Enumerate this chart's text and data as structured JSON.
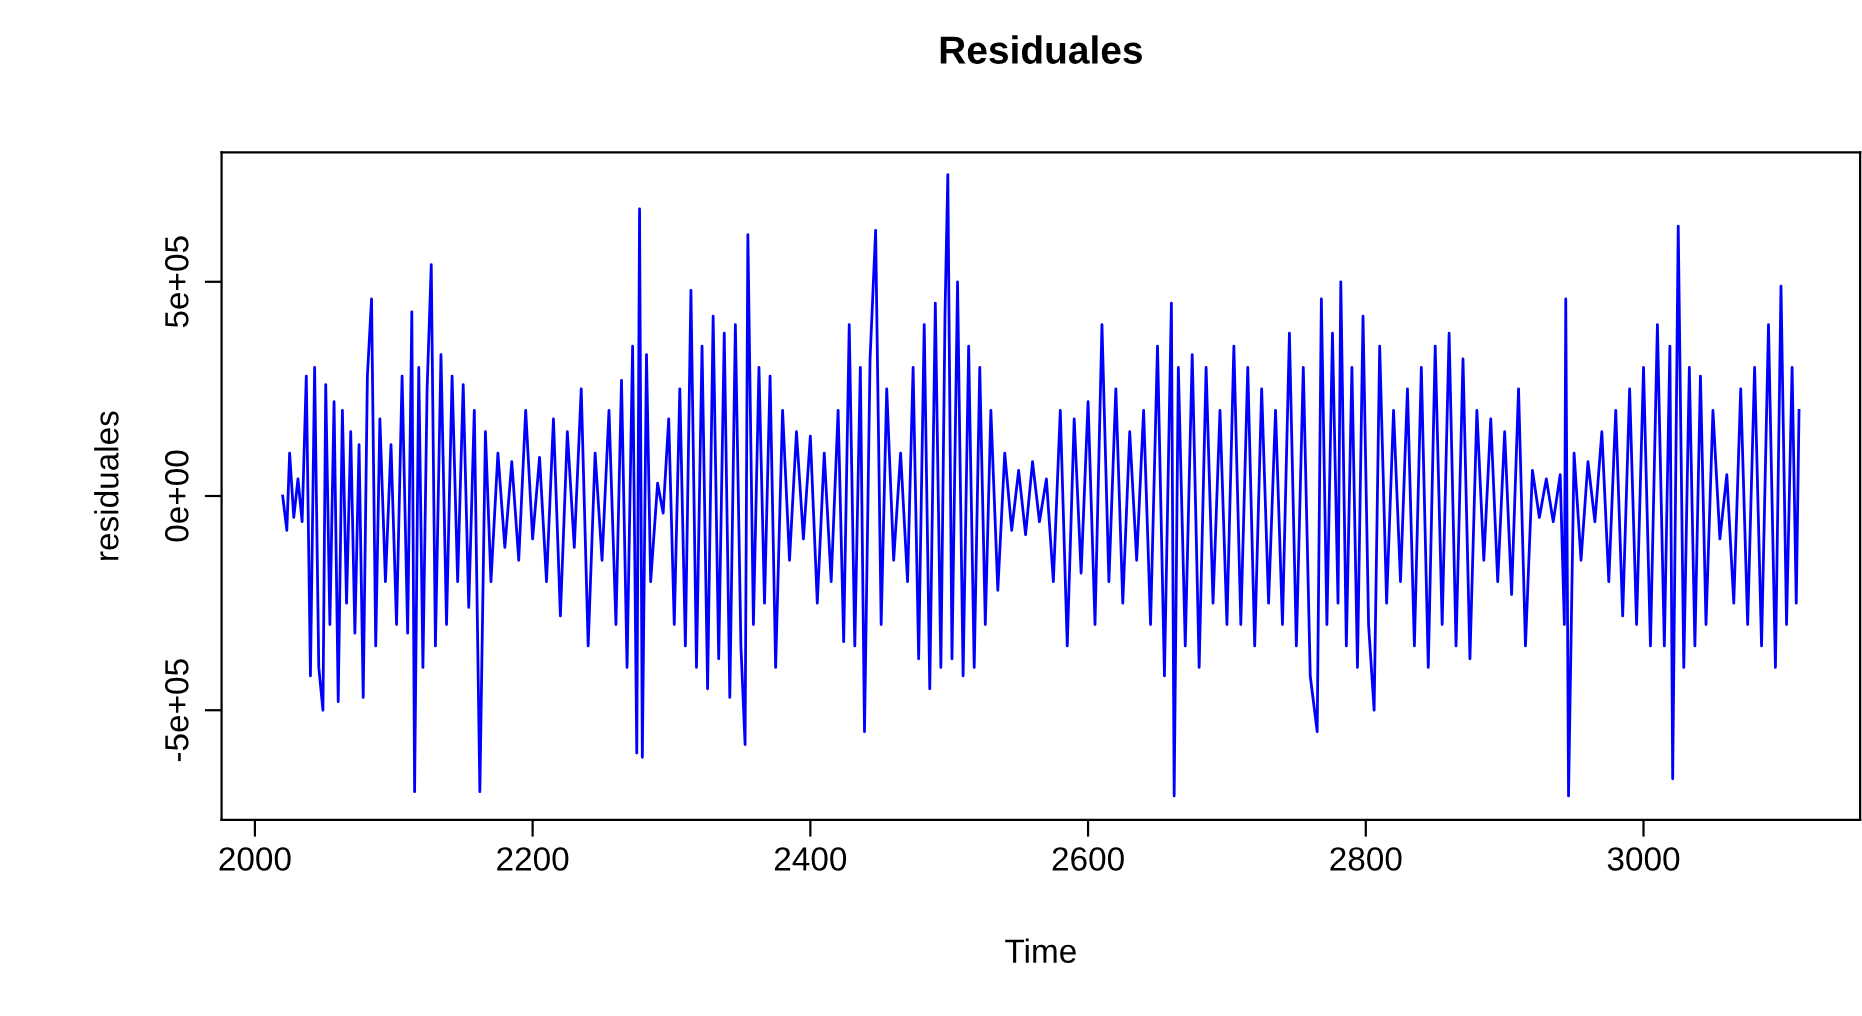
{
  "chart_data": {
    "type": "line",
    "title": "Residuales",
    "xlabel": "Time",
    "ylabel": "residuales",
    "xlim": [
      1976,
      3156
    ],
    "ylim": [
      -756000,
      802000
    ],
    "xticks": [
      2000,
      2200,
      2400,
      2600,
      2800,
      3000
    ],
    "yticks": [
      {
        "value": -500000,
        "label": "-5e+05"
      },
      {
        "value": 0,
        "label": "0e+00"
      },
      {
        "value": 500000,
        "label": "5e+05"
      }
    ],
    "grid": false,
    "legend": false,
    "marker": "none",
    "line_style": "solid",
    "series": [
      {
        "color": "#0000ff",
        "x": [
          2020,
          2023,
          2025,
          2028,
          2031,
          2034,
          2037,
          2040,
          2043,
          2046,
          2049,
          2051,
          2054,
          2057,
          2060,
          2063,
          2066,
          2069,
          2072,
          2075,
          2078,
          2081,
          2084,
          2087,
          2090,
          2094,
          2098,
          2102,
          2106,
          2110,
          2113,
          2115,
          2118,
          2121,
          2124,
          2127,
          2130,
          2134,
          2138,
          2142,
          2146,
          2150,
          2154,
          2158,
          2162,
          2166,
          2170,
          2175,
          2180,
          2185,
          2190,
          2195,
          2200,
          2205,
          2210,
          2215,
          2220,
          2225,
          2230,
          2235,
          2240,
          2245,
          2250,
          2255,
          2260,
          2264,
          2268,
          2272,
          2275,
          2277,
          2279,
          2282,
          2285,
          2290,
          2294,
          2298,
          2302,
          2306,
          2310,
          2314,
          2318,
          2322,
          2326,
          2330,
          2334,
          2338,
          2342,
          2346,
          2350,
          2353,
          2355,
          2359,
          2363,
          2367,
          2371,
          2375,
          2380,
          2385,
          2390,
          2395,
          2400,
          2405,
          2410,
          2415,
          2420,
          2424,
          2428,
          2432,
          2436,
          2439,
          2443,
          2447,
          2451,
          2455,
          2460,
          2465,
          2470,
          2474,
          2478,
          2482,
          2486,
          2490,
          2494,
          2497,
          2499,
          2502,
          2506,
          2510,
          2514,
          2518,
          2522,
          2526,
          2530,
          2535,
          2540,
          2545,
          2550,
          2555,
          2560,
          2565,
          2570,
          2575,
          2580,
          2585,
          2590,
          2595,
          2600,
          2605,
          2610,
          2615,
          2620,
          2625,
          2630,
          2635,
          2640,
          2645,
          2650,
          2655,
          2660,
          2662,
          2665,
          2670,
          2675,
          2680,
          2685,
          2690,
          2695,
          2700,
          2705,
          2710,
          2715,
          2720,
          2725,
          2730,
          2735,
          2740,
          2745,
          2750,
          2755,
          2760,
          2765,
          2768,
          2772,
          2776,
          2780,
          2782,
          2786,
          2790,
          2794,
          2798,
          2802,
          2806,
          2810,
          2815,
          2820,
          2825,
          2830,
          2835,
          2840,
          2845,
          2850,
          2855,
          2860,
          2865,
          2870,
          2875,
          2880,
          2885,
          2890,
          2895,
          2900,
          2905,
          2910,
          2915,
          2920,
          2925,
          2930,
          2935,
          2940,
          2943,
          2944,
          2946,
          2950,
          2955,
          2960,
          2965,
          2970,
          2975,
          2980,
          2985,
          2990,
          2995,
          3000,
          3005,
          3010,
          3015,
          3019,
          3021,
          3025,
          3029,
          3033,
          3037,
          3041,
          3045,
          3050,
          3055,
          3060,
          3065,
          3070,
          3075,
          3080,
          3085,
          3090,
          3095,
          3099,
          3103,
          3107,
          3110,
          3112
        ],
        "values": [
          0,
          -80000,
          100000,
          -50000,
          40000,
          -60000,
          280000,
          -420000,
          300000,
          -400000,
          -500000,
          260000,
          -300000,
          220000,
          -480000,
          200000,
          -250000,
          150000,
          -320000,
          120000,
          -470000,
          280000,
          460000,
          -350000,
          180000,
          -200000,
          120000,
          -300000,
          280000,
          -320000,
          430000,
          -690000,
          300000,
          -400000,
          250000,
          540000,
          -350000,
          330000,
          -300000,
          280000,
          -200000,
          260000,
          -260000,
          200000,
          -690000,
          150000,
          -200000,
          100000,
          -120000,
          80000,
          -150000,
          200000,
          -100000,
          90000,
          -200000,
          180000,
          -280000,
          150000,
          -120000,
          250000,
          -350000,
          100000,
          -150000,
          200000,
          -300000,
          270000,
          -400000,
          350000,
          -600000,
          670000,
          -610000,
          330000,
          -200000,
          30000,
          -40000,
          180000,
          -300000,
          250000,
          -350000,
          480000,
          -400000,
          350000,
          -450000,
          420000,
          -380000,
          380000,
          -470000,
          400000,
          -350000,
          -580000,
          610000,
          -300000,
          300000,
          -250000,
          280000,
          -400000,
          200000,
          -150000,
          150000,
          -100000,
          140000,
          -250000,
          100000,
          -200000,
          200000,
          -340000,
          400000,
          -350000,
          300000,
          -550000,
          320000,
          620000,
          -300000,
          250000,
          -150000,
          100000,
          -200000,
          300000,
          -380000,
          400000,
          -450000,
          450000,
          -400000,
          430000,
          750000,
          -380000,
          500000,
          -420000,
          350000,
          -400000,
          300000,
          -300000,
          200000,
          -220000,
          100000,
          -80000,
          60000,
          -90000,
          80000,
          -60000,
          40000,
          -200000,
          200000,
          -350000,
          180000,
          -180000,
          220000,
          -300000,
          400000,
          -200000,
          250000,
          -250000,
          150000,
          -150000,
          200000,
          -300000,
          350000,
          -420000,
          450000,
          -700000,
          300000,
          -350000,
          330000,
          -400000,
          300000,
          -250000,
          200000,
          -300000,
          350000,
          -300000,
          300000,
          -350000,
          250000,
          -250000,
          200000,
          -300000,
          380000,
          -350000,
          300000,
          -420000,
          -550000,
          460000,
          -300000,
          380000,
          -250000,
          500000,
          -350000,
          300000,
          -400000,
          420000,
          -300000,
          -500000,
          350000,
          -250000,
          200000,
          -200000,
          250000,
          -350000,
          300000,
          -400000,
          350000,
          -300000,
          380000,
          -350000,
          320000,
          -380000,
          200000,
          -150000,
          180000,
          -200000,
          150000,
          -230000,
          250000,
          -350000,
          60000,
          -50000,
          40000,
          -60000,
          50000,
          -300000,
          460000,
          -700000,
          100000,
          -150000,
          80000,
          -60000,
          150000,
          -200000,
          200000,
          -280000,
          250000,
          -300000,
          300000,
          -350000,
          400000,
          -350000,
          350000,
          -660000,
          630000,
          -400000,
          300000,
          -350000,
          280000,
          -300000,
          200000,
          -100000,
          50000,
          -250000,
          250000,
          -300000,
          300000,
          -350000,
          400000,
          -400000,
          490000,
          -300000,
          300000,
          -250000,
          200000
        ]
      }
    ]
  }
}
